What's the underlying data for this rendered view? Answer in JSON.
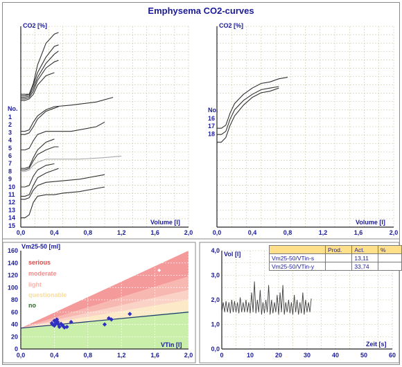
{
  "title": "Emphysema CO2-curves",
  "colors": {
    "title": "#1a1a9a",
    "curve": "#303030",
    "curve_light": "#a8a8a8",
    "point": "#3030c0"
  },
  "chart_data": [
    {
      "type": "line",
      "panel": "top-left",
      "ylabel": "CO2 [%]",
      "xlabel": "Volume [l]",
      "xlim": [
        0,
        2.0
      ],
      "xticks": [
        "0,0",
        "0,4",
        "0,8",
        "1,2",
        "1,6",
        "2,0"
      ],
      "legend_title": "No.",
      "curve_numbers": [
        "1",
        "2",
        "3",
        "4",
        "5",
        "6",
        "7",
        "8",
        "9",
        "10",
        "11",
        "12",
        "13",
        "14",
        "15"
      ],
      "series": [
        {
          "name": "1",
          "x": [
            0,
            0.05,
            0.1,
            0.15,
            0.2,
            0.3,
            0.4,
            0.45
          ],
          "y": [
            0.86,
            0.86,
            0.86,
            0.93,
            1.05,
            1.19,
            1.25,
            1.26
          ]
        },
        {
          "name": "2",
          "x": [
            0,
            0.05,
            0.1,
            0.15,
            0.2,
            0.3,
            0.4,
            0.45
          ],
          "y": [
            0.85,
            0.85,
            0.86,
            0.92,
            1.0,
            1.1,
            1.17,
            1.18
          ]
        },
        {
          "name": "3",
          "x": [
            0,
            0.05,
            0.1,
            0.15,
            0.2,
            0.3,
            0.4,
            0.45
          ],
          "y": [
            0.84,
            0.84,
            0.85,
            0.9,
            0.97,
            1.06,
            1.12,
            1.14
          ]
        },
        {
          "name": "4",
          "x": [
            0,
            0.05,
            0.1,
            0.15,
            0.2,
            0.3,
            0.4,
            0.45
          ],
          "y": [
            0.83,
            0.83,
            0.84,
            0.88,
            0.95,
            1.03,
            1.07,
            1.08
          ]
        },
        {
          "name": "5",
          "x": [
            0,
            0.05,
            0.1,
            0.15,
            0.2,
            0.3,
            0.4
          ],
          "y": [
            0.82,
            0.82,
            0.83,
            0.86,
            0.92,
            0.98,
            1.0
          ]
        },
        {
          "name": "6",
          "x": [
            0,
            0.05,
            0.1,
            0.15,
            0.2,
            0.3,
            0.4,
            0.6,
            0.9,
            1.1
          ],
          "y": [
            0.62,
            0.62,
            0.63,
            0.68,
            0.72,
            0.76,
            0.78,
            0.79,
            0.81,
            0.84
          ]
        },
        {
          "name": "7",
          "x": [
            0,
            0.05,
            0.1,
            0.15,
            0.2,
            0.3,
            0.4,
            0.45
          ],
          "y": [
            0.6,
            0.6,
            0.61,
            0.65,
            0.7,
            0.75,
            0.77,
            0.78
          ]
        },
        {
          "name": "8",
          "x": [
            0,
            0.05,
            0.1,
            0.15,
            0.2,
            0.3,
            0.4,
            0.6,
            0.9,
            1.0
          ],
          "y": [
            0.5,
            0.5,
            0.51,
            0.56,
            0.6,
            0.62,
            0.62,
            0.62,
            0.65,
            0.68
          ]
        },
        {
          "name": "9",
          "x": [
            0,
            0.05,
            0.1,
            0.15,
            0.2,
            0.3,
            0.4
          ],
          "y": [
            0.38,
            0.38,
            0.39,
            0.45,
            0.5,
            0.55,
            0.57
          ]
        },
        {
          "name": "10",
          "x": [
            0,
            0.05,
            0.1,
            0.15,
            0.2,
            0.3,
            0.4,
            0.45
          ],
          "y": [
            0.37,
            0.37,
            0.38,
            0.43,
            0.47,
            0.5,
            0.52,
            0.52
          ]
        },
        {
          "name": "11",
          "x": [
            0,
            0.05,
            0.1,
            0.15,
            0.2,
            0.3,
            0.4,
            0.5,
            0.7,
            1.0,
            1.2
          ],
          "y": [
            0.36,
            0.36,
            0.37,
            0.4,
            0.42,
            0.44,
            0.44,
            0.44,
            0.44,
            0.45,
            0.46
          ]
        },
        {
          "name": "12",
          "x": [
            0,
            0.05,
            0.1,
            0.15,
            0.2,
            0.3,
            0.4
          ],
          "y": [
            0.26,
            0.26,
            0.27,
            0.33,
            0.37,
            0.4,
            0.41
          ]
        },
        {
          "name": "13",
          "x": [
            0,
            0.05,
            0.1,
            0.15,
            0.2,
            0.3,
            0.4,
            0.45
          ],
          "y": [
            0.2,
            0.2,
            0.21,
            0.27,
            0.32,
            0.35,
            0.37,
            0.38
          ]
        },
        {
          "name": "14",
          "x": [
            0,
            0.05,
            0.1,
            0.15,
            0.2,
            0.3,
            0.5,
            0.7,
            1.0
          ],
          "y": [
            0.18,
            0.18,
            0.19,
            0.24,
            0.27,
            0.29,
            0.3,
            0.31,
            0.34
          ]
        },
        {
          "name": "15",
          "x": [
            0,
            0.05,
            0.1,
            0.15,
            0.2,
            0.3,
            0.4,
            0.5,
            0.7,
            1.0
          ],
          "y": [
            0.06,
            0.06,
            0.08,
            0.16,
            0.2,
            0.21,
            0.21,
            0.22,
            0.23,
            0.26
          ]
        }
      ]
    },
    {
      "type": "line",
      "panel": "top-right",
      "ylabel": "CO2 [%]",
      "xlabel": "Volume [l]",
      "xlim": [
        0,
        2.0
      ],
      "xticks": [
        "0,0",
        "0,4",
        "0,8",
        "1,2",
        "1,6",
        "2,0"
      ],
      "legend_title": "No.",
      "curve_numbers": [
        "16",
        "17",
        "18"
      ],
      "series": [
        {
          "name": "16",
          "x": [
            0,
            0.05,
            0.1,
            0.15,
            0.2,
            0.3,
            0.4,
            0.5,
            0.6,
            0.7,
            0.8
          ],
          "y": [
            0.64,
            0.64,
            0.66,
            0.74,
            0.8,
            0.86,
            0.9,
            0.93,
            0.94,
            0.96,
            0.97
          ]
        },
        {
          "name": "17",
          "x": [
            0,
            0.05,
            0.1,
            0.15,
            0.2,
            0.3,
            0.4,
            0.5,
            0.6,
            0.7
          ],
          "y": [
            0.6,
            0.6,
            0.62,
            0.7,
            0.76,
            0.82,
            0.86,
            0.89,
            0.9,
            0.91
          ]
        },
        {
          "name": "18",
          "x": [
            0,
            0.05,
            0.1,
            0.15,
            0.2,
            0.3,
            0.4,
            0.5,
            0.6,
            0.7
          ],
          "y": [
            0.55,
            0.55,
            0.58,
            0.66,
            0.72,
            0.79,
            0.84,
            0.87,
            0.88,
            0.9
          ]
        }
      ]
    },
    {
      "type": "scatter",
      "panel": "bottom-left",
      "ylabel": "Vm25-50 [ml]",
      "xlabel": "VTin [l]",
      "xlim": [
        0,
        2.0
      ],
      "ylim": [
        0,
        160
      ],
      "xticks": [
        "0,0",
        "0,4",
        "0,8",
        "1,2",
        "1,6",
        "2,0"
      ],
      "yticks": [
        "0",
        "20",
        "40",
        "60",
        "80",
        "100",
        "120",
        "140",
        "160"
      ],
      "zones": [
        "serious",
        "moderate",
        "light",
        "questionable",
        "no"
      ],
      "regression": {
        "x": [
          0,
          2.0
        ],
        "y": [
          34,
          60
        ]
      },
      "points": {
        "x": [
          0.38,
          0.4,
          0.42,
          0.44,
          0.4,
          0.46,
          0.5,
          0.43,
          0.37,
          0.48,
          0.52,
          0.55,
          0.6,
          0.45,
          1.05,
          1.08,
          1.3,
          1.0
        ],
        "y": [
          40,
          46,
          42,
          44,
          38,
          36,
          38,
          48,
          42,
          41,
          35,
          36,
          44,
          40,
          50,
          48,
          57,
          40
        ]
      },
      "outlier": {
        "x": 1.65,
        "y": 128
      }
    },
    {
      "type": "line",
      "panel": "bottom-right",
      "ylabel": "Vol [l]",
      "xlabel": "Zeit [s]",
      "xlim": [
        0,
        60
      ],
      "ylim": [
        0,
        4
      ],
      "xticks": [
        "0",
        "10",
        "20",
        "30",
        "40",
        "50",
        "60"
      ],
      "yticks": [
        "0,0",
        "1,0",
        "2,0",
        "3,0",
        "4,0"
      ],
      "series": [
        {
          "name": "",
          "x": [
            0,
            0.5,
            1,
            1.5,
            2,
            2.5,
            3,
            3.5,
            4,
            4.5,
            5,
            5.5,
            6,
            6.5,
            7,
            7.5,
            8,
            8.5,
            9,
            9.5,
            10,
            10.5,
            11,
            11.5,
            12,
            12.5,
            13,
            13.5,
            14,
            14.5,
            15,
            15.5,
            16,
            16.5,
            17,
            17.5,
            18,
            18.5,
            19,
            19.5,
            20,
            20.5,
            21,
            21.5,
            22,
            22.5,
            23,
            23.5,
            24,
            24.5,
            25,
            25.5,
            26,
            26.5,
            27,
            27.5,
            28,
            28.5,
            29,
            29.5,
            30,
            30.5,
            31,
            31.5
          ],
          "y": [
            1.5,
            1.9,
            1.5,
            1.95,
            1.5,
            1.9,
            1.45,
            2.0,
            1.5,
            1.95,
            1.5,
            1.9,
            1.45,
            2.1,
            1.5,
            1.9,
            1.5,
            2.0,
            1.5,
            1.9,
            1.45,
            2.3,
            1.5,
            2.75,
            1.45,
            2.0,
            1.5,
            2.4,
            1.4,
            1.9,
            1.45,
            2.0,
            1.5,
            2.6,
            1.4,
            2.0,
            1.45,
            1.9,
            1.5,
            2.2,
            1.4,
            2.3,
            1.5,
            2.6,
            1.4,
            1.9,
            1.5,
            2.0,
            1.45,
            1.9,
            1.4,
            2.2,
            1.5,
            2.0,
            1.4,
            1.9,
            1.45,
            2.3,
            1.4,
            2.0,
            1.5,
            1.9,
            1.5,
            2.05
          ]
        }
      ],
      "table": {
        "headers": [
          "",
          "Prod.",
          "Act.",
          "%"
        ],
        "rows": [
          [
            "Vm25-50/VTin-s",
            "",
            "13,11",
            ""
          ],
          [
            "Vm25-50/VTin-y",
            "",
            "33,74",
            ""
          ]
        ]
      }
    }
  ]
}
